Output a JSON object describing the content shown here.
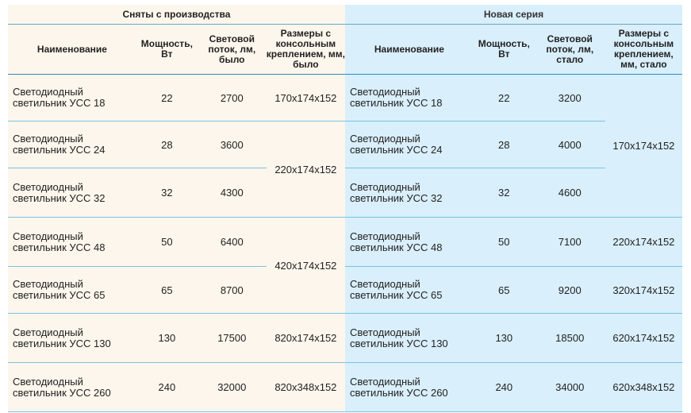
{
  "groups": {
    "discontinued": "Сняты с производства",
    "new_series": "Новая серия"
  },
  "headers": {
    "left": {
      "name": "Наименование",
      "power": "Мощность, Вт",
      "flux": "Световой поток, лм, было",
      "size": "Размеры с консольным креплением, мм, было"
    },
    "right": {
      "name": "Наименование",
      "power": "Мощность, Вт",
      "flux": "Световой поток, лм, стало",
      "size": "Размеры с консольным креплением, мм, стало"
    }
  },
  "rows": [
    {
      "left": {
        "name1": "Светодиодный",
        "name2": "светильник УСС 18",
        "power": "22",
        "flux": "2700"
      },
      "right": {
        "name1": "Светодиодный",
        "name2": "светильник УСС 18",
        "power": "22",
        "flux": "3200"
      }
    },
    {
      "left": {
        "name1": "Светодиодный",
        "name2": "светильник УСС 24",
        "power": "28",
        "flux": "3600"
      },
      "right": {
        "name1": "Светодиодный",
        "name2": "светильник УСС 24",
        "power": "28",
        "flux": "4000"
      }
    },
    {
      "left": {
        "name1": "Светодиодный",
        "name2": "светильник УСС 32",
        "power": "32",
        "flux": "4300"
      },
      "right": {
        "name1": "Светодиодный",
        "name2": "светильник УСС 32",
        "power": "32",
        "flux": "4600"
      }
    },
    {
      "left": {
        "name1": "Светодиодный",
        "name2": "светильник УСС 48",
        "power": "50",
        "flux": "6400"
      },
      "right": {
        "name1": "Светодиодный",
        "name2": "светильник УСС 48",
        "power": "50",
        "flux": "7100"
      }
    },
    {
      "left": {
        "name1": "Светодиодный",
        "name2": "светильник УСС 65",
        "power": "65",
        "flux": "8700"
      },
      "right": {
        "name1": "Светодиодный",
        "name2": "светильник УСС 65",
        "power": "65",
        "flux": "9200"
      }
    },
    {
      "left": {
        "name1": "Светодиодный",
        "name2": "светильник УСС 130",
        "power": "130",
        "flux": "17500"
      },
      "right": {
        "name1": "Светодиодный",
        "name2": "светильник УСС 130",
        "power": "130",
        "flux": "18500"
      }
    },
    {
      "left": {
        "name1": "Светодиодный",
        "name2": "светильник УСС 260",
        "power": "240",
        "flux": "32000"
      },
      "right": {
        "name1": "Светодиодный",
        "name2": "светильник УСС 260",
        "power": "240",
        "flux": "34000"
      }
    }
  ],
  "left_sizes": {
    "usc18": "170x174x152",
    "usc24_32": "220x174x152",
    "usc48_65": "420x174x152",
    "usc130": "820x174x152",
    "usc260": "820x348x152"
  },
  "right_sizes": {
    "usc18_32": "170x174x152",
    "usc48": "220x174x152",
    "usc65": "320x174x152",
    "usc130": "620x174x152",
    "usc260": "620x348x152"
  },
  "colors": {
    "left_bg": "#fdf6ec",
    "right_bg": "#d9effb",
    "divider": "#7cc1e2"
  }
}
